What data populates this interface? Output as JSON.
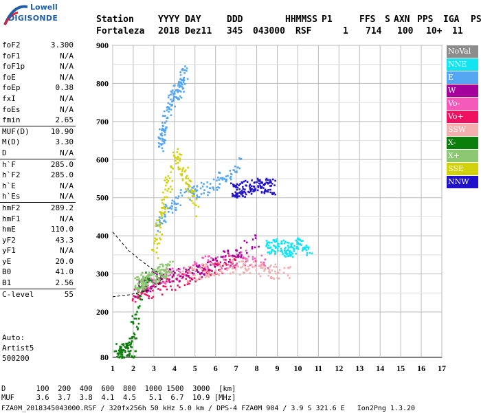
{
  "logo": {
    "line1": "Lowell",
    "line2": "DIGISONDE"
  },
  "header": {
    "row1": [
      "Station",
      "YYYY DAY",
      "DDD",
      "HHMMSS",
      "P1",
      "FFS",
      "S",
      "AXN",
      "PPS",
      "IGA",
      "PS"
    ],
    "row2": [
      "Fortaleza",
      "2018 Dez11",
      "345",
      "043000",
      "RSF",
      "1",
      "714",
      "100",
      "10+",
      "11"
    ]
  },
  "parameters": [
    {
      "key": "foF2",
      "value": "3.300"
    },
    {
      "key": "foF1",
      "value": "N/A"
    },
    {
      "key": "foF1p",
      "value": "N/A"
    },
    {
      "key": "foE",
      "value": "N/A"
    },
    {
      "key": "foEp",
      "value": "0.38"
    },
    {
      "key": "fxI",
      "value": "N/A"
    },
    {
      "key": "foEs",
      "value": "N/A"
    },
    {
      "key": "fmin",
      "value": "2.65",
      "sep_after": true
    },
    {
      "key": "MUF(D)",
      "value": "10.90"
    },
    {
      "key": "M(D)",
      "value": "3.30"
    },
    {
      "key": "D",
      "value": "N/A",
      "sep_after": true
    },
    {
      "key": "h`F",
      "value": "285.0"
    },
    {
      "key": "h`F2",
      "value": "285.0"
    },
    {
      "key": "h`E",
      "value": "N/A"
    },
    {
      "key": "h`Es",
      "value": "N/A",
      "sep_after": true
    },
    {
      "key": "hmF2",
      "value": "289.2"
    },
    {
      "key": "hmF1",
      "value": "N/A"
    },
    {
      "key": "hmE",
      "value": "110.0"
    },
    {
      "key": "yF2",
      "value": "43.3"
    },
    {
      "key": "yF1",
      "value": "N/A"
    },
    {
      "key": "yE",
      "value": "20.0"
    },
    {
      "key": "B0",
      "value": "41.0"
    },
    {
      "key": "B1",
      "value": "2.56",
      "sep_after": true
    },
    {
      "key": "C-level",
      "value": "55",
      "sep_after": true
    }
  ],
  "autoscale": {
    "line1": "Auto:",
    "line2": "Artist5",
    "line3": "500200"
  },
  "legend": [
    {
      "label": "NoVal",
      "color": "#8c8c8c"
    },
    {
      "label": "NNE",
      "color": "#12e4f0"
    },
    {
      "label": "E",
      "color": "#54a6f0"
    },
    {
      "label": "W",
      "color": "#a4009c"
    },
    {
      "label": "Vo-",
      "color": "#f45aba"
    },
    {
      "label": "Vo+",
      "color": "#ee1260"
    },
    {
      "label": "SSW",
      "color": "#f4aeae"
    },
    {
      "label": "X-",
      "color": "#0c7e0c"
    },
    {
      "label": "X+",
      "color": "#8cc872"
    },
    {
      "label": "SSE",
      "color": "#d2d20c"
    },
    {
      "label": "NNW",
      "color": "#2012c8"
    }
  ],
  "footer": {
    "d_label": "D",
    "d_values": [
      "100",
      "200",
      "400",
      "600",
      "800",
      "1000",
      "1500",
      "3000",
      "[km]"
    ],
    "muf_label": "MUF",
    "muf_values": [
      "3.6",
      "3.7",
      "3.8",
      "4.1",
      "4.5",
      "5.1",
      "6.7",
      "10.9",
      "[MHz]"
    ],
    "info": "FZA0M_2018345043000.RSF / 320fx256h 50 kHz 5.0 km / DPS-4 FZA0M 904 / 3.9 S 321.6 E   Ion2Png 1.3.20"
  },
  "chart_data": {
    "type": "scatter",
    "x_ticks": [
      "1",
      "2",
      "3",
      "4",
      "5",
      "6",
      "7",
      "8",
      "9",
      "10",
      "11",
      "12",
      "13",
      "14",
      "15",
      "16",
      "17"
    ],
    "y_ticks": [
      "80",
      "200",
      "300",
      "400",
      "500",
      "600",
      "700",
      "800",
      "900"
    ],
    "xlim": [
      1,
      17
    ],
    "ylim": [
      80,
      900
    ],
    "grid": true,
    "legend_position": "right",
    "series": [
      {
        "name": "E",
        "x": [
          3.1,
          3.7,
          4.3,
          5.1,
          5.9,
          6.6,
          7.1
        ],
        "y": [
          430,
          470,
          505,
          520,
          540,
          565,
          595
        ]
      },
      {
        "name": "E",
        "x": [
          3.3,
          3.5,
          3.8,
          4.2,
          4.5
        ],
        "y": [
          640,
          700,
          760,
          790,
          830
        ]
      },
      {
        "name": "NNW",
        "x": [
          6.8,
          7.3,
          7.8,
          8.3,
          8.8
        ],
        "y": [
          520,
          525,
          530,
          535,
          530
        ]
      },
      {
        "name": "NNE",
        "x": [
          8.5,
          9.0,
          9.5,
          10.0,
          10.5
        ],
        "y": [
          370,
          375,
          365,
          380,
          355
        ]
      },
      {
        "name": "Vo+",
        "x": [
          1.9,
          3.0,
          4.0,
          5.0,
          6.0,
          7.0
        ],
        "y": [
          240,
          260,
          280,
          300,
          320,
          340
        ]
      },
      {
        "name": "Vo-",
        "x": [
          2.5,
          3.5,
          4.5,
          5.5,
          6.5,
          7.5,
          8.5
        ],
        "y": [
          270,
          295,
          310,
          330,
          335,
          345,
          330
        ]
      },
      {
        "name": "W",
        "x": [
          2.0,
          3.0,
          4.0,
          5.0,
          6.0,
          7.0,
          8.0
        ],
        "y": [
          250,
          290,
          300,
          310,
          330,
          360,
          390
        ]
      },
      {
        "name": "SSW",
        "x": [
          4.5,
          5.5,
          6.5,
          7.5,
          8.5,
          9.5
        ],
        "y": [
          300,
          310,
          320,
          320,
          310,
          300
        ]
      },
      {
        "name": "SSE",
        "x": [
          3.0,
          3.5,
          4.0,
          4.5,
          5.0
        ],
        "y": [
          350,
          500,
          620,
          560,
          470
        ]
      },
      {
        "name": "X-",
        "x": [
          1.2,
          1.5,
          1.9,
          2.3,
          2.8
        ],
        "y": [
          98,
          100,
          102,
          270,
          300
        ]
      },
      {
        "name": "X+",
        "x": [
          2.1,
          2.6,
          3.2,
          3.8
        ],
        "y": [
          270,
          290,
          300,
          320
        ]
      }
    ],
    "profile_curve": {
      "x": [
        1.0,
        1.8,
        2.5,
        3.0,
        3.3
      ],
      "y": [
        410,
        360,
        330,
        310,
        300
      ]
    },
    "lower_trace": {
      "x": [
        1.0,
        1.8,
        2.6,
        3.2,
        3.4
      ],
      "y": [
        240,
        245,
        255,
        270,
        290
      ]
    }
  }
}
